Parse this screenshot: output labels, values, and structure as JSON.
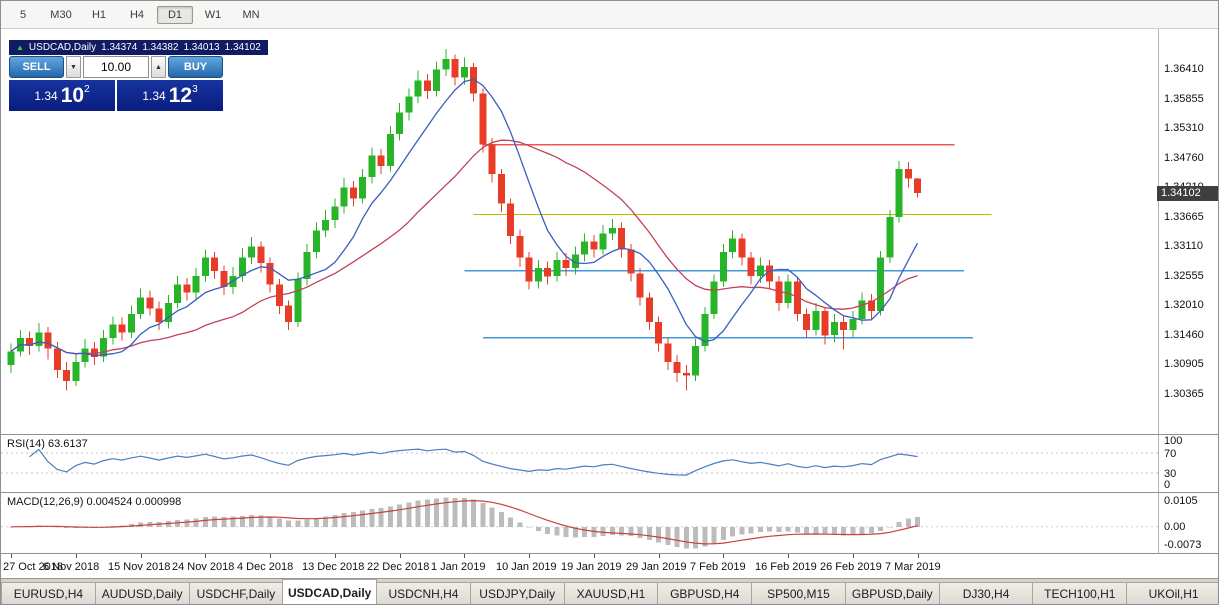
{
  "window": {
    "timeframes": [
      "5",
      "M30",
      "H1",
      "H4",
      "D1",
      "W1",
      "MN"
    ],
    "active_timeframe": "D1"
  },
  "quote_bar": {
    "direction_icon": "▲",
    "symbol": "USDCAD,Daily",
    "open": "1.34374",
    "high": "1.34382",
    "low": "1.34013",
    "close": "1.34102"
  },
  "trade_panel": {
    "sell_label": "SELL",
    "buy_label": "BUY",
    "volume": "10.00",
    "bid": {
      "big": "1.34",
      "pips": "10",
      "pipette": "2"
    },
    "ask": {
      "big": "1.34",
      "pips": "12",
      "pipette": "3"
    }
  },
  "price_badge": "1.34102",
  "axis": {
    "price_labels": [
      "1.36410",
      "1.35855",
      "1.35310",
      "1.34760",
      "1.34210",
      "1.33665",
      "1.33110",
      "1.32555",
      "1.32010",
      "1.31460",
      "1.30905",
      "1.30365"
    ],
    "date_labels": [
      "27 Oct 2018",
      "6 Nov 2018",
      "15 Nov 2018",
      "24 Nov 2018",
      "4 Dec 2018",
      "13 Dec 2018",
      "22 Dec 2018",
      "1 Jan 2019",
      "10 Jan 2019",
      "19 Jan 2019",
      "29 Jan 2019",
      "7 Feb 2019",
      "16 Feb 2019",
      "26 Feb 2019",
      "7 Mar 2019"
    ]
  },
  "rsi_panel": {
    "label": "RSI(14) 63.6137",
    "levels": [
      "100",
      "70",
      "30",
      "0"
    ]
  },
  "macd_panel": {
    "label": "MACD(12,26,9) 0.004524 0.000998",
    "axis_labels": [
      "0.0105",
      "0.00",
      "-0.0073"
    ]
  },
  "tabs": [
    "EURUSD,H4",
    "AUDUSD,Daily",
    "USDCHF,Daily",
    "USDCAD,Daily",
    "USDCNH,H4",
    "USDJPY,Daily",
    "XAUUSD,H1",
    "GBPUSD,H4",
    "SP500,M15",
    "GBPUSD,Daily",
    "DJ30,H4",
    "TECH100,H1",
    "UKOil,H1"
  ],
  "active_tab_index": 3,
  "colors": {
    "bull": "#28b428",
    "bear": "#e83c28",
    "ma_fast": "#3a5dc0",
    "ma_slow": "#c24257",
    "rsi_line": "#4a7fc0",
    "macd_hist": "#bcbcbc",
    "macd_signal": "#c84040",
    "hline_red": "#f05555",
    "hline_yellow": "#bdbd00",
    "hline_blue": "#3e9adc",
    "quote_bar_bg": "#111b63",
    "price_box_blue": "#0c22a0",
    "button_blue": "#2f7cc4"
  },
  "chart_data": {
    "type": "candlestick",
    "symbol": "USDCAD",
    "timeframe": "Daily",
    "current_price": 1.34102,
    "y_axis": {
      "max": 1.3641,
      "min": 1.30365,
      "step": 0.00555
    },
    "date_tick_every": 7,
    "overlays": {
      "ma_fast": {
        "period": 8,
        "color_key": "ma_fast"
      },
      "ma_slow": {
        "period": 21,
        "color_key": "ma_slow"
      },
      "hlines": [
        {
          "price": 1.35,
          "i1": 51,
          "i2": 102,
          "color_key": "hline_red"
        },
        {
          "price": 1.337,
          "i1": 50,
          "i2": 106,
          "color_key": "hline_yellow"
        },
        {
          "price": 1.3265,
          "i1": 49,
          "i2": 103,
          "color_key": "hline_blue"
        },
        {
          "price": 1.314,
          "i1": 51,
          "i2": 104,
          "color_key": "hline_blue"
        }
      ]
    },
    "indicators": {
      "rsi": {
        "period": 14,
        "current": 63.6137,
        "levels": [
          70,
          30
        ]
      },
      "macd": {
        "fast": 12,
        "slow": 26,
        "signal": 9,
        "current": 0.004524,
        "signal_current": 0.000998
      }
    },
    "candles": [
      [
        1.309,
        1.313,
        1.3075,
        1.3115
      ],
      [
        1.3115,
        1.3155,
        1.3105,
        1.314
      ],
      [
        1.314,
        1.3152,
        1.3108,
        1.3125
      ],
      [
        1.3125,
        1.3168,
        1.3115,
        1.315
      ],
      [
        1.315,
        1.316,
        1.31,
        1.312
      ],
      [
        1.312,
        1.3132,
        1.3065,
        1.308
      ],
      [
        1.308,
        1.3095,
        1.3042,
        1.306
      ],
      [
        1.306,
        1.311,
        1.305,
        1.3095
      ],
      [
        1.3095,
        1.3138,
        1.3085,
        1.312
      ],
      [
        1.312,
        1.3132,
        1.309,
        1.3105
      ],
      [
        1.3105,
        1.3155,
        1.3095,
        1.314
      ],
      [
        1.314,
        1.318,
        1.3128,
        1.3165
      ],
      [
        1.3165,
        1.3178,
        1.3135,
        1.315
      ],
      [
        1.315,
        1.32,
        1.314,
        1.3185
      ],
      [
        1.3185,
        1.3232,
        1.3175,
        1.3215
      ],
      [
        1.3215,
        1.3228,
        1.3182,
        1.3195
      ],
      [
        1.3195,
        1.3208,
        1.3155,
        1.317
      ],
      [
        1.317,
        1.322,
        1.3158,
        1.3205
      ],
      [
        1.3205,
        1.3255,
        1.3195,
        1.324
      ],
      [
        1.324,
        1.3252,
        1.321,
        1.3225
      ],
      [
        1.3225,
        1.327,
        1.3212,
        1.3255
      ],
      [
        1.3255,
        1.3305,
        1.3245,
        1.329
      ],
      [
        1.329,
        1.33,
        1.325,
        1.3265
      ],
      [
        1.3265,
        1.3275,
        1.322,
        1.3235
      ],
      [
        1.3235,
        1.3272,
        1.3222,
        1.3255
      ],
      [
        1.3255,
        1.3308,
        1.3245,
        1.329
      ],
      [
        1.329,
        1.3328,
        1.3278,
        1.331
      ],
      [
        1.331,
        1.332,
        1.3262,
        1.328
      ],
      [
        1.328,
        1.329,
        1.3225,
        1.324
      ],
      [
        1.324,
        1.325,
        1.3185,
        1.32
      ],
      [
        1.32,
        1.321,
        1.3155,
        1.317
      ],
      [
        1.317,
        1.3262,
        1.316,
        1.325
      ],
      [
        1.325,
        1.3315,
        1.3238,
        1.33
      ],
      [
        1.33,
        1.3355,
        1.3288,
        1.334
      ],
      [
        1.334,
        1.3378,
        1.3328,
        1.336
      ],
      [
        1.336,
        1.34,
        1.3345,
        1.3385
      ],
      [
        1.3385,
        1.3438,
        1.3372,
        1.342
      ],
      [
        1.342,
        1.3432,
        1.3385,
        1.34
      ],
      [
        1.34,
        1.3455,
        1.339,
        1.344
      ],
      [
        1.344,
        1.3495,
        1.3428,
        1.348
      ],
      [
        1.348,
        1.3492,
        1.3445,
        1.346
      ],
      [
        1.346,
        1.3535,
        1.345,
        1.352
      ],
      [
        1.352,
        1.3578,
        1.3508,
        1.356
      ],
      [
        1.356,
        1.3605,
        1.3545,
        1.359
      ],
      [
        1.359,
        1.3638,
        1.3578,
        1.362
      ],
      [
        1.362,
        1.3632,
        1.3585,
        1.36
      ],
      [
        1.36,
        1.3655,
        1.359,
        1.364
      ],
      [
        1.364,
        1.3678,
        1.3628,
        1.366
      ],
      [
        1.366,
        1.3668,
        1.361,
        1.3625
      ],
      [
        1.3625,
        1.3662,
        1.3612,
        1.3645
      ],
      [
        1.3645,
        1.3652,
        1.358,
        1.3595
      ],
      [
        1.3595,
        1.3605,
        1.3485,
        1.35
      ],
      [
        1.35,
        1.3512,
        1.343,
        1.3445
      ],
      [
        1.3445,
        1.3455,
        1.3375,
        1.339
      ],
      [
        1.339,
        1.34,
        1.3315,
        1.333
      ],
      [
        1.333,
        1.3342,
        1.3272,
        1.329
      ],
      [
        1.329,
        1.33,
        1.323,
        1.3245
      ],
      [
        1.3245,
        1.3285,
        1.3232,
        1.327
      ],
      [
        1.327,
        1.3282,
        1.324,
        1.3255
      ],
      [
        1.3255,
        1.33,
        1.3245,
        1.3285
      ],
      [
        1.3285,
        1.3298,
        1.3255,
        1.327
      ],
      [
        1.327,
        1.331,
        1.3258,
        1.3295
      ],
      [
        1.3295,
        1.3335,
        1.3282,
        1.332
      ],
      [
        1.332,
        1.3332,
        1.329,
        1.3305
      ],
      [
        1.3305,
        1.335,
        1.3295,
        1.3335
      ],
      [
        1.3335,
        1.3362,
        1.3322,
        1.3345
      ],
      [
        1.3345,
        1.3355,
        1.329,
        1.3305
      ],
      [
        1.3305,
        1.3315,
        1.3245,
        1.326
      ],
      [
        1.326,
        1.327,
        1.32,
        1.3215
      ],
      [
        1.3215,
        1.3225,
        1.3155,
        1.317
      ],
      [
        1.317,
        1.318,
        1.3115,
        1.313
      ],
      [
        1.313,
        1.314,
        1.308,
        1.3095
      ],
      [
        1.3095,
        1.3108,
        1.3058,
        1.3075
      ],
      [
        1.3075,
        1.309,
        1.3042,
        1.307
      ],
      [
        1.307,
        1.3138,
        1.306,
        1.3125
      ],
      [
        1.3125,
        1.3198,
        1.3115,
        1.3185
      ],
      [
        1.3185,
        1.3258,
        1.3175,
        1.3245
      ],
      [
        1.3245,
        1.3315,
        1.3235,
        1.33
      ],
      [
        1.33,
        1.334,
        1.3288,
        1.3325
      ],
      [
        1.3325,
        1.3335,
        1.3275,
        1.329
      ],
      [
        1.329,
        1.33,
        1.324,
        1.3255
      ],
      [
        1.3255,
        1.329,
        1.3242,
        1.3275
      ],
      [
        1.3275,
        1.3285,
        1.323,
        1.3245
      ],
      [
        1.3245,
        1.3255,
        1.319,
        1.3205
      ],
      [
        1.3205,
        1.3258,
        1.3195,
        1.3245
      ],
      [
        1.3245,
        1.3252,
        1.3172,
        1.3185
      ],
      [
        1.3185,
        1.3195,
        1.314,
        1.3155
      ],
      [
        1.3155,
        1.3205,
        1.3145,
        1.319
      ],
      [
        1.319,
        1.3198,
        1.3128,
        1.3145
      ],
      [
        1.3145,
        1.3185,
        1.3132,
        1.317
      ],
      [
        1.317,
        1.3182,
        1.3118,
        1.3155
      ],
      [
        1.3155,
        1.319,
        1.3142,
        1.3175
      ],
      [
        1.3175,
        1.3225,
        1.3165,
        1.321
      ],
      [
        1.321,
        1.3222,
        1.3175,
        1.319
      ],
      [
        1.319,
        1.3302,
        1.3182,
        1.329
      ],
      [
        1.329,
        1.3378,
        1.328,
        1.3365
      ],
      [
        1.3365,
        1.347,
        1.3355,
        1.3455
      ],
      [
        1.3455,
        1.3468,
        1.342,
        1.3437
      ],
      [
        1.34374,
        1.34382,
        1.34013,
        1.34102
      ]
    ]
  }
}
